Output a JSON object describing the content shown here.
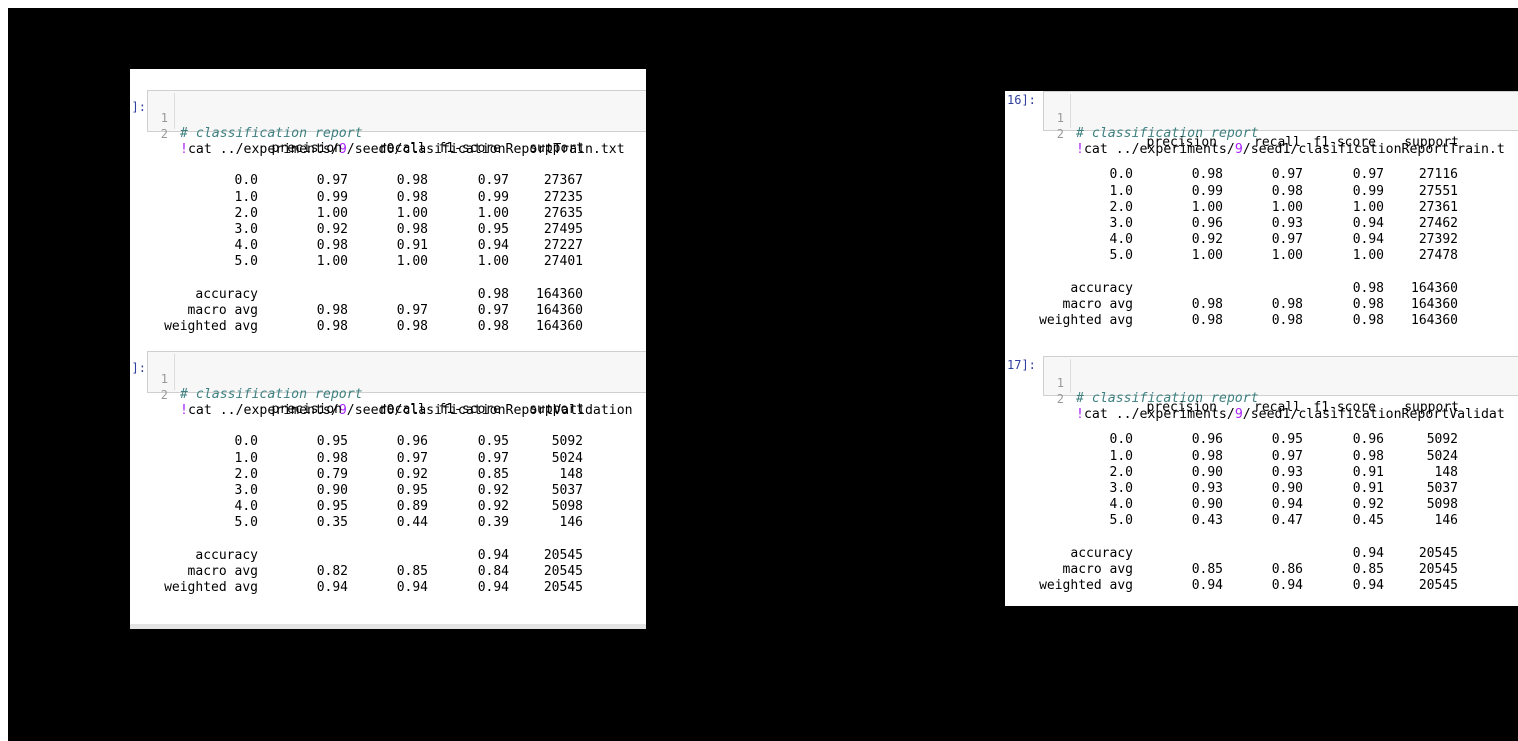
{
  "panels": [
    {
      "id": "left",
      "cells": [
        {
          "prompt": "]:",
          "code": {
            "line1_no": "1",
            "line1_text": "# classification report",
            "line2_no": "2",
            "line2_bang": "!",
            "line2_pre": "cat ../experiments/",
            "line2_num": "9",
            "line2_post": "/seed0/clasificationReportTrain.txt"
          },
          "report": {
            "headers": [
              "precision",
              "recall",
              "f1-score",
              "support"
            ],
            "rows": [
              [
                "0.0",
                "0.97",
                "0.98",
                "0.97",
                "27367"
              ],
              [
                "1.0",
                "0.99",
                "0.98",
                "0.99",
                "27235"
              ],
              [
                "2.0",
                "1.00",
                "1.00",
                "1.00",
                "27635"
              ],
              [
                "3.0",
                "0.92",
                "0.98",
                "0.95",
                "27495"
              ],
              [
                "4.0",
                "0.98",
                "0.91",
                "0.94",
                "27227"
              ],
              [
                "5.0",
                "1.00",
                "1.00",
                "1.00",
                "27401"
              ]
            ],
            "summary": [
              [
                "accuracy",
                "",
                "",
                "0.98",
                "164360"
              ],
              [
                "macro avg",
                "0.98",
                "0.97",
                "0.97",
                "164360"
              ],
              [
                "weighted avg",
                "0.98",
                "0.98",
                "0.98",
                "164360"
              ]
            ]
          }
        },
        {
          "prompt": "]:",
          "code": {
            "line1_no": "1",
            "line1_text": "# classification report",
            "line2_no": "2",
            "line2_bang": "!",
            "line2_pre": "cat ../experiments/",
            "line2_num": "9",
            "line2_post": "/seed0/clasificationReportValidation"
          },
          "report": {
            "headers": [
              "precision",
              "recall",
              "f1-score",
              "support"
            ],
            "rows": [
              [
                "0.0",
                "0.95",
                "0.96",
                "0.95",
                "5092"
              ],
              [
                "1.0",
                "0.98",
                "0.97",
                "0.97",
                "5024"
              ],
              [
                "2.0",
                "0.79",
                "0.92",
                "0.85",
                "148"
              ],
              [
                "3.0",
                "0.90",
                "0.95",
                "0.92",
                "5037"
              ],
              [
                "4.0",
                "0.95",
                "0.89",
                "0.92",
                "5098"
              ],
              [
                "5.0",
                "0.35",
                "0.44",
                "0.39",
                "146"
              ]
            ],
            "summary": [
              [
                "accuracy",
                "",
                "",
                "0.94",
                "20545"
              ],
              [
                "macro avg",
                "0.82",
                "0.85",
                "0.84",
                "20545"
              ],
              [
                "weighted avg",
                "0.94",
                "0.94",
                "0.94",
                "20545"
              ]
            ]
          }
        }
      ]
    },
    {
      "id": "right",
      "cells": [
        {
          "prompt": "16]:",
          "code": {
            "line1_no": "1",
            "line1_text": "# classification report",
            "line2_no": "2",
            "line2_bang": "!",
            "line2_pre": "cat ../experiments/",
            "line2_num": "9",
            "line2_post": "/seed1/clasificationReportTrain.t"
          },
          "report": {
            "headers": [
              "precision",
              "recall",
              "f1-score",
              "support"
            ],
            "rows": [
              [
                "0.0",
                "0.98",
                "0.97",
                "0.97",
                "27116"
              ],
              [
                "1.0",
                "0.99",
                "0.98",
                "0.99",
                "27551"
              ],
              [
                "2.0",
                "1.00",
                "1.00",
                "1.00",
                "27361"
              ],
              [
                "3.0",
                "0.96",
                "0.93",
                "0.94",
                "27462"
              ],
              [
                "4.0",
                "0.92",
                "0.97",
                "0.94",
                "27392"
              ],
              [
                "5.0",
                "1.00",
                "1.00",
                "1.00",
                "27478"
              ]
            ],
            "summary": [
              [
                "accuracy",
                "",
                "",
                "0.98",
                "164360"
              ],
              [
                "macro avg",
                "0.98",
                "0.98",
                "0.98",
                "164360"
              ],
              [
                "weighted avg",
                "0.98",
                "0.98",
                "0.98",
                "164360"
              ]
            ]
          }
        },
        {
          "prompt": "17]:",
          "code": {
            "line1_no": "1",
            "line1_text": "# classification report",
            "line2_no": "2",
            "line2_bang": "!",
            "line2_pre": "cat ../experiments/",
            "line2_num": "9",
            "line2_post": "/seed1/clasificationReportValidat"
          },
          "report": {
            "headers": [
              "precision",
              "recall",
              "f1-score",
              "support"
            ],
            "rows": [
              [
                "0.0",
                "0.96",
                "0.95",
                "0.96",
                "5092"
              ],
              [
                "1.0",
                "0.98",
                "0.97",
                "0.98",
                "5024"
              ],
              [
                "2.0",
                "0.90",
                "0.93",
                "0.91",
                "148"
              ],
              [
                "3.0",
                "0.93",
                "0.90",
                "0.91",
                "5037"
              ],
              [
                "4.0",
                "0.90",
                "0.94",
                "0.92",
                "5098"
              ],
              [
                "5.0",
                "0.43",
                "0.47",
                "0.45",
                "146"
              ]
            ],
            "summary": [
              [
                "accuracy",
                "",
                "",
                "0.94",
                "20545"
              ],
              [
                "macro avg",
                "0.85",
                "0.86",
                "0.85",
                "20545"
              ],
              [
                "weighted avg",
                "0.94",
                "0.94",
                "0.94",
                "20545"
              ]
            ]
          }
        }
      ]
    }
  ]
}
